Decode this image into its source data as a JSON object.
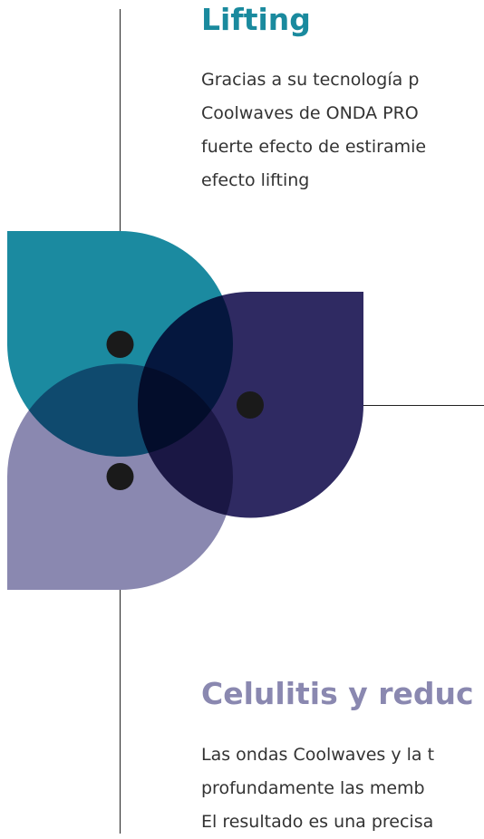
{
  "sections": [
    {
      "title": "Lifting",
      "lines": [
        "Gracias a su tecnología p",
        "Coolwaves de ONDA PRO",
        "fuerte efecto de estiramie",
        "efecto lifting"
      ]
    },
    {
      "title": "Celulitis y reduc",
      "lines": [
        "Las ondas Coolwaves y la t",
        "profundamente las memb",
        "El resultado es una precisa"
      ]
    }
  ]
}
